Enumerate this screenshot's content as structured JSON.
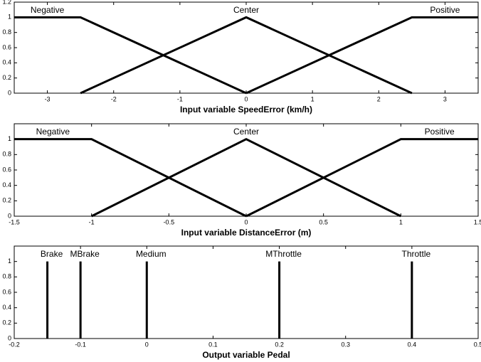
{
  "chart_data": [
    {
      "type": "line",
      "x_label": "Input variable SpeedError (km/h)",
      "xlim": [
        -3.5,
        3.5
      ],
      "ylim": [
        0,
        1.2
      ],
      "xticks": [
        -3,
        -2,
        -1,
        0,
        1,
        2,
        3
      ],
      "yticks": [
        0,
        0.2,
        0.4,
        0.6,
        0.8,
        1,
        1.2
      ],
      "series": [
        {
          "name": "Negative",
          "color": "#000000",
          "x": [
            -3.5,
            -2.5,
            0
          ],
          "values": [
            1,
            1,
            0
          ]
        },
        {
          "name": "Center",
          "color": "#000000",
          "x": [
            -2.5,
            0,
            2.5
          ],
          "values": [
            0,
            1,
            0
          ]
        },
        {
          "name": "Positive",
          "color": "#000000",
          "x": [
            0,
            2.5,
            3.5
          ],
          "values": [
            0,
            1,
            1
          ]
        }
      ]
    },
    {
      "type": "line",
      "x_label": "Input variable DistanceError (m)",
      "xlim": [
        -1.5,
        1.5
      ],
      "ylim": [
        0,
        1.2
      ],
      "xticks": [
        -1.5,
        -1,
        -0.5,
        0,
        0.5,
        1,
        1.5
      ],
      "yticks": [
        0,
        0.2,
        0.4,
        0.6,
        0.8,
        1
      ],
      "series": [
        {
          "name": "Negative",
          "color": "#000000",
          "x": [
            -1.5,
            -1,
            0
          ],
          "values": [
            1,
            1,
            0
          ]
        },
        {
          "name": "Center",
          "color": "#000000",
          "x": [
            -1,
            0,
            1
          ],
          "values": [
            0,
            1,
            0
          ]
        },
        {
          "name": "Positive",
          "color": "#000000",
          "x": [
            0,
            1,
            1.5
          ],
          "values": [
            0,
            1,
            1
          ]
        }
      ]
    },
    {
      "type": "stem",
      "x_label": "Output variable Pedal",
      "xlim": [
        -0.2,
        0.5
      ],
      "ylim": [
        0,
        1.2
      ],
      "xticks": [
        -0.2,
        -0.1,
        0,
        0.1,
        0.2,
        0.3,
        0.4,
        0.5
      ],
      "yticks": [
        0,
        0.2,
        0.4,
        0.6,
        0.8,
        1
      ],
      "series": [
        {
          "name": "Brake",
          "color": "#000000",
          "x": [
            -0.15
          ],
          "values": [
            1
          ]
        },
        {
          "name": "MBrake",
          "color": "#000000",
          "x": [
            -0.1
          ],
          "values": [
            1
          ]
        },
        {
          "name": "Medium",
          "color": "#000000",
          "x": [
            0
          ],
          "values": [
            1
          ]
        },
        {
          "name": "MThrottle",
          "color": "#000000",
          "x": [
            0.2
          ],
          "values": [
            1
          ]
        },
        {
          "name": "Throttle",
          "color": "#000000",
          "x": [
            0.4
          ],
          "values": [
            1
          ]
        }
      ]
    }
  ]
}
